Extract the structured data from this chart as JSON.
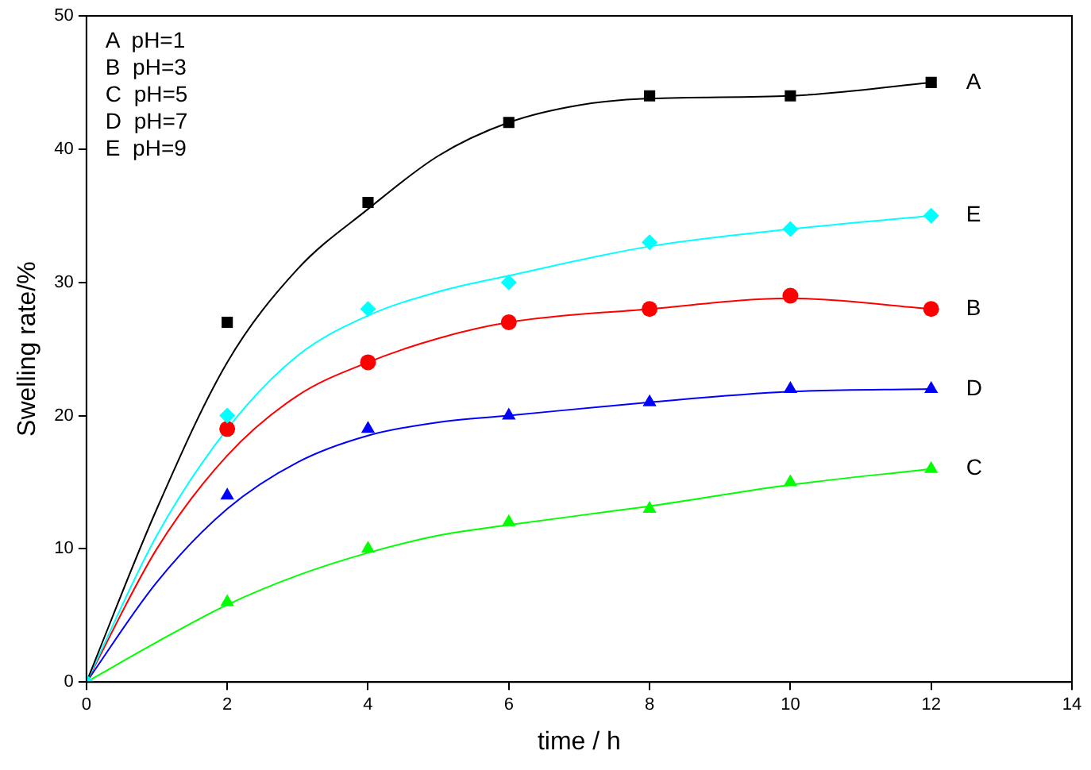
{
  "chart_data": {
    "type": "scatter",
    "xlabel": "time / h",
    "ylabel": "Swelling rate/%",
    "xlim": [
      0,
      14
    ],
    "xticks": [
      0,
      2,
      4,
      6,
      8,
      10,
      12,
      14
    ],
    "ylim": [
      0,
      50
    ],
    "yticks": [
      0,
      10,
      20,
      30,
      40,
      50
    ],
    "grid": false,
    "legend": false,
    "annotations": [
      "A  pH=1",
      "B  pH=3",
      "C  pH=5",
      "D  pH=7",
      "E  pH=9"
    ],
    "series": [
      {
        "name": "A",
        "color": "#000000",
        "marker": "square",
        "x": [
          2,
          4,
          6,
          8,
          10,
          12
        ],
        "values": [
          27,
          36,
          42,
          44,
          44,
          45
        ]
      },
      {
        "name": "E",
        "color": "#00ffff",
        "marker": "diamond",
        "x": [
          0,
          2,
          4,
          6,
          8,
          10,
          12
        ],
        "values": [
          0,
          20,
          28,
          30,
          33,
          34,
          35
        ]
      },
      {
        "name": "B",
        "color": "#ff0000",
        "marker": "circle",
        "x": [
          2,
          4,
          6,
          8,
          10,
          12
        ],
        "values": [
          19,
          24,
          27,
          28,
          29,
          28
        ]
      },
      {
        "name": "D",
        "color": "#0000ff",
        "marker": "triangle",
        "x": [
          2,
          4,
          6,
          8,
          10,
          12
        ],
        "values": [
          14,
          19,
          20,
          21,
          22,
          22
        ]
      },
      {
        "name": "C",
        "color": "#00ff00",
        "marker": "triangle",
        "x": [
          2,
          4,
          6,
          8,
          10,
          12
        ],
        "values": [
          6,
          10,
          12,
          13,
          15,
          16
        ]
      },
      {
        "type": "line",
        "color": "#000000",
        "marker": "none",
        "x": [
          0,
          1,
          2,
          3,
          4,
          5,
          6,
          7,
          8,
          10,
          12
        ],
        "values": [
          0,
          13,
          24,
          31,
          35.5,
          39.5,
          42,
          43.3,
          43.8,
          44,
          45
        ]
      },
      {
        "type": "line",
        "color": "#00ffff",
        "marker": "none",
        "x": [
          0,
          1,
          2,
          3,
          4,
          5,
          6,
          8,
          10,
          12
        ],
        "values": [
          0,
          11,
          19,
          24.5,
          27.5,
          29.3,
          30.5,
          32.7,
          34,
          35
        ]
      },
      {
        "type": "line",
        "color": "#ff0000",
        "marker": "none",
        "x": [
          0,
          1,
          2,
          3,
          4,
          5,
          6,
          8,
          10,
          12
        ],
        "values": [
          0,
          10,
          17,
          21.5,
          24,
          25.8,
          27,
          28,
          28.8,
          28
        ]
      },
      {
        "type": "line",
        "color": "#0000ff",
        "marker": "none",
        "x": [
          0,
          1,
          2,
          3,
          4,
          5,
          6,
          8,
          10,
          12
        ],
        "values": [
          0,
          7.5,
          13,
          16.5,
          18.5,
          19.5,
          20,
          21,
          21.8,
          22
        ]
      },
      {
        "type": "line",
        "color": "#00ff00",
        "marker": "none",
        "x": [
          0,
          1,
          2,
          3,
          4,
          5,
          6,
          8,
          10,
          12
        ],
        "values": [
          0,
          3,
          5.8,
          8,
          9.7,
          11,
          11.8,
          13.2,
          14.8,
          16
        ]
      }
    ]
  }
}
